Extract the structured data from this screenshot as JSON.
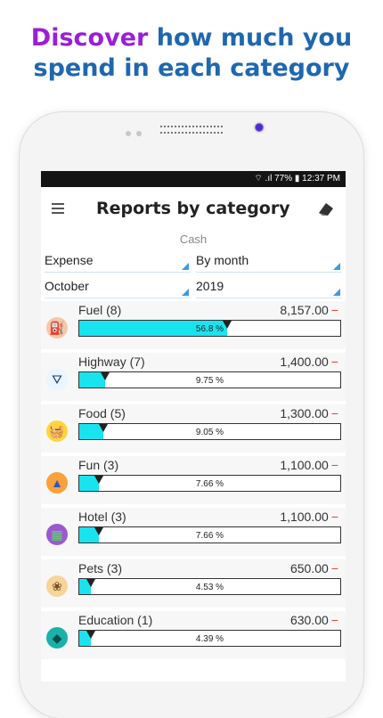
{
  "headline": {
    "accent": "Discover",
    "rest_line1": " how much you",
    "line2": "spend in each category"
  },
  "status": {
    "text": "⌔ .ıl 77% ▮ 12:37 PM"
  },
  "appbar": {
    "title": "Reports by category"
  },
  "account": "Cash",
  "filters": {
    "type": "Expense",
    "period": "By month",
    "month": "October",
    "year": "2019"
  },
  "colors": {
    "fill": "#1ae3f0",
    "negative": "#e0412f"
  },
  "categories": [
    {
      "name": "Fuel (8)",
      "amount": "8,157.00",
      "sign": "−",
      "percent_label": "56.8 %",
      "percent": 56.8,
      "icon": "fuel-icon"
    },
    {
      "name": "Highway (7)",
      "amount": "1,400.00",
      "sign": "−",
      "percent_label": "9.75 %",
      "percent": 9.75,
      "icon": "highway-icon"
    },
    {
      "name": "Food (5)",
      "amount": "1,300.00",
      "sign": "−",
      "percent_label": "9.05 %",
      "percent": 9.05,
      "icon": "shopping-basket-icon"
    },
    {
      "name": "Fun (3)",
      "amount": "1,100.00",
      "sign": "−",
      "percent_label": "7.66 %",
      "percent": 7.66,
      "icon": "party-hat-icon"
    },
    {
      "name": "Hotel (3)",
      "amount": "1,100.00",
      "sign": "−",
      "percent_label": "7.66 %",
      "percent": 7.66,
      "icon": "hotel-icon"
    },
    {
      "name": "Pets (3)",
      "amount": "650.00",
      "sign": "−",
      "percent_label": "4.53 %",
      "percent": 4.53,
      "icon": "paw-icon"
    },
    {
      "name": "Education (1)",
      "amount": "630.00",
      "sign": "−",
      "percent_label": "4.39 %",
      "percent": 4.39,
      "icon": "graduation-cap-icon"
    }
  ]
}
